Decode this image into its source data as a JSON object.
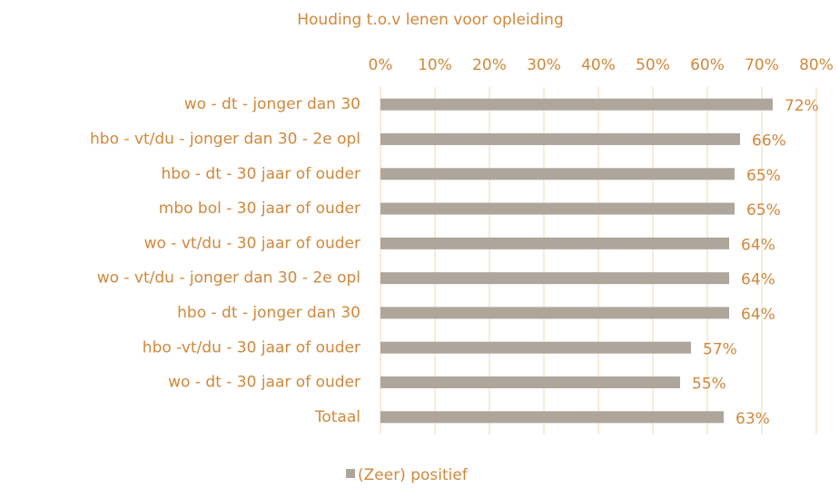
{
  "chart_data": {
    "type": "bar",
    "orientation": "horizontal",
    "title": "Houding t.o.v lenen voor opleiding",
    "categories": [
      "wo - dt - jonger dan 30",
      "hbo - vt/du - jonger dan 30 - 2e opl",
      "hbo - dt - 30 jaar of ouder",
      "mbo bol - 30 jaar of ouder",
      "wo - vt/du - 30 jaar of ouder",
      "wo - vt/du - jonger dan 30 - 2e opl",
      "hbo - dt - jonger dan 30",
      "hbo -vt/du - 30 jaar of ouder",
      "wo - dt - 30 jaar of ouder",
      "Totaal"
    ],
    "series": [
      {
        "name": "(Zeer) positief",
        "color": "#aea59b",
        "values": [
          72,
          66,
          65,
          65,
          64,
          64,
          64,
          57,
          55,
          63
        ],
        "value_labels": [
          "72%",
          "66%",
          "65%",
          "65%",
          "64%",
          "64%",
          "64%",
          "57%",
          "55%",
          "63%"
        ]
      }
    ],
    "xlim": [
      0,
      80
    ],
    "xticks": [
      {
        "value": 0,
        "label": "0%"
      },
      {
        "value": 10,
        "label": "10%"
      },
      {
        "value": 20,
        "label": "20%"
      },
      {
        "value": 30,
        "label": "30%"
      },
      {
        "value": 40,
        "label": "40%"
      },
      {
        "value": 50,
        "label": "50%"
      },
      {
        "value": 60,
        "label": "60%"
      },
      {
        "value": 70,
        "label": "70%"
      },
      {
        "value": 80,
        "label": "80%"
      }
    ],
    "grid": true,
    "legend": "bottom"
  }
}
